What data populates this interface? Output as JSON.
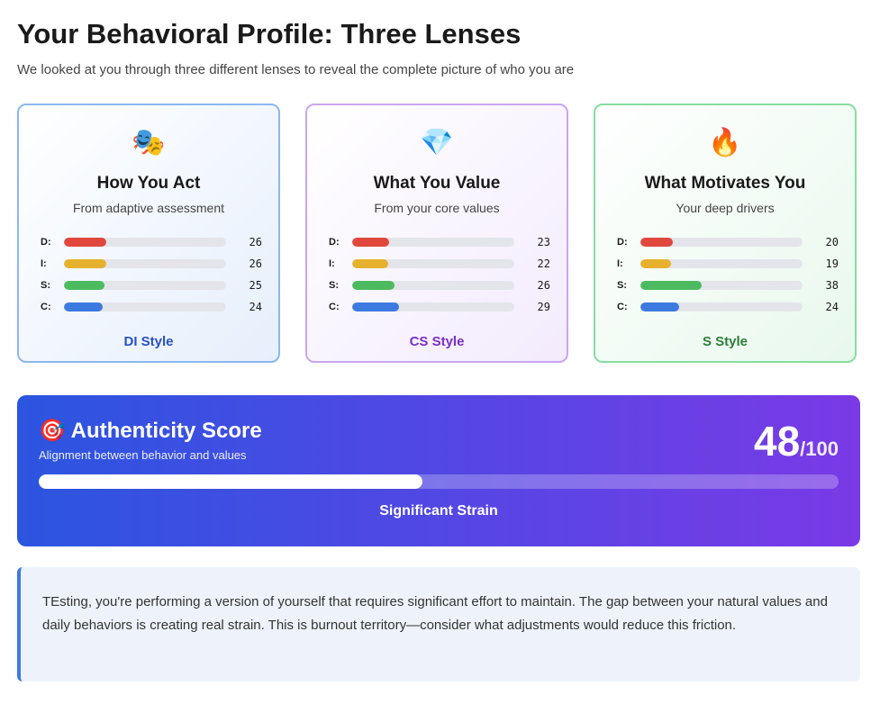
{
  "header": {
    "title": "Your Behavioral Profile: Three Lenses",
    "subtitle": "We looked at you through three different lenses to reveal the complete picture of who you are"
  },
  "lenses": [
    {
      "icon": "🎭",
      "title": "How You Act",
      "subtitle": "From adaptive assessment",
      "style": "DI Style",
      "border": "#8ab8f0",
      "background": "#e6effc",
      "accent": "#2750c8",
      "scores": [
        {
          "label": "D:",
          "value": 26,
          "color": "#e0483e"
        },
        {
          "label": "I:",
          "value": 26,
          "color": "#e6b12e"
        },
        {
          "label": "S:",
          "value": 25,
          "color": "#4cbb5f"
        },
        {
          "label": "C:",
          "value": 24,
          "color": "#3d7ae0"
        }
      ]
    },
    {
      "icon": "💎",
      "title": "What You Value",
      "subtitle": "From your core values",
      "style": "CS Style",
      "border": "#c9a6f0",
      "background": "#f3ebfd",
      "accent": "#7a2fc8",
      "scores": [
        {
          "label": "D:",
          "value": 23,
          "color": "#e0483e"
        },
        {
          "label": "I:",
          "value": 22,
          "color": "#e6b12e"
        },
        {
          "label": "S:",
          "value": 26,
          "color": "#4cbb5f"
        },
        {
          "label": "C:",
          "value": 29,
          "color": "#3d7ae0"
        }
      ]
    },
    {
      "icon": "🔥",
      "title": "What Motivates You",
      "subtitle": "Your deep drivers",
      "style": "S Style",
      "border": "#86dea0",
      "background": "#e8f8ed",
      "accent": "#2e7d3a",
      "scores": [
        {
          "label": "D:",
          "value": 20,
          "color": "#e0483e"
        },
        {
          "label": "I:",
          "value": 19,
          "color": "#e6b12e"
        },
        {
          "label": "S:",
          "value": 38,
          "color": "#4cbb5f"
        },
        {
          "label": "C:",
          "value": 24,
          "color": "#3d7ae0"
        }
      ]
    }
  ],
  "authenticity": {
    "icon": "🎯",
    "title": "Authenticity Score",
    "subtitle": "Alignment between behavior and values",
    "score": 48,
    "out_of": 100,
    "status": "Significant Strain"
  },
  "note": "TEsting, you're performing a version of yourself that requires significant effort to maintain. The gap between your natural values and daily behaviors is creating real strain. This is burnout territory—consider what adjustments would reduce this friction."
}
